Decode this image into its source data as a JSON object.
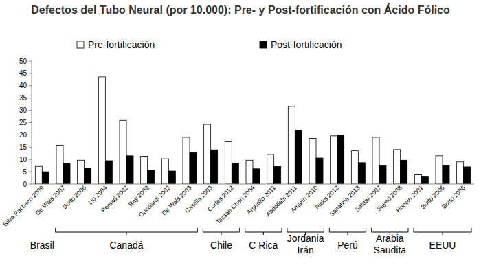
{
  "chart_data": {
    "type": "bar",
    "title": "Defectos del Tubo Neural (por 10.000): Pre- y Post-fortificación con Ácido Fólico",
    "categories": [
      "Silva Pacheco 2009",
      "De Wals 2007",
      "Botto 2006",
      "Liu 2004",
      "Persad 2002",
      "Ray 2002",
      "Gucciardi 2002",
      "De Wals 2003",
      "Castilla 2003",
      "Cortes 2012",
      "Tacsan Chen 2004",
      "Arguello 2011",
      "Abdollahi 2011",
      "Amarin 2010",
      "Ricks 2012",
      "Sanabria 2013",
      "Safdar 2007",
      "Sayed 2008",
      "Honein 2001",
      "Botto 2006",
      "Botto 2006"
    ],
    "series": [
      {
        "name": "Pre-fortificación",
        "color": "#ffffff",
        "values": [
          7.2,
          15.8,
          9.7,
          43.6,
          25.9,
          11.3,
          10.3,
          19,
          24.3,
          17.2,
          9.7,
          12,
          31.6,
          18.6,
          19.6,
          13.5,
          19,
          14,
          3.8,
          11.5,
          9
        ]
      },
      {
        "name": "Post-fortificación",
        "color": "#000000",
        "values": [
          5,
          8.5,
          6.5,
          9.5,
          11.5,
          5.6,
          5.3,
          12.8,
          13.9,
          8.5,
          6.2,
          7.1,
          21.9,
          10.6,
          19.9,
          8.7,
          7.4,
          9.7,
          2.9,
          7.5,
          7
        ]
      }
    ],
    "groups": [
      {
        "label": "Brasil",
        "start": 0,
        "end": 0
      },
      {
        "label": "Canadá",
        "start": 1,
        "end": 7
      },
      {
        "label": "Chile",
        "start": 8,
        "end": 9
      },
      {
        "label": "C Rica",
        "start": 10,
        "end": 11
      },
      {
        "label": "Jordania Irán",
        "start": 12,
        "end": 13
      },
      {
        "label": "Perú",
        "start": 14,
        "end": 15
      },
      {
        "label": "Arabia Saudita",
        "start": 16,
        "end": 17
      },
      {
        "label": "EEUU",
        "start": 18,
        "end": 20
      }
    ],
    "ylim": [
      0,
      50
    ],
    "yticks": [
      0,
      5,
      10,
      15,
      20,
      25,
      30,
      35,
      40,
      45,
      50
    ],
    "grid": false,
    "legend": "top"
  }
}
